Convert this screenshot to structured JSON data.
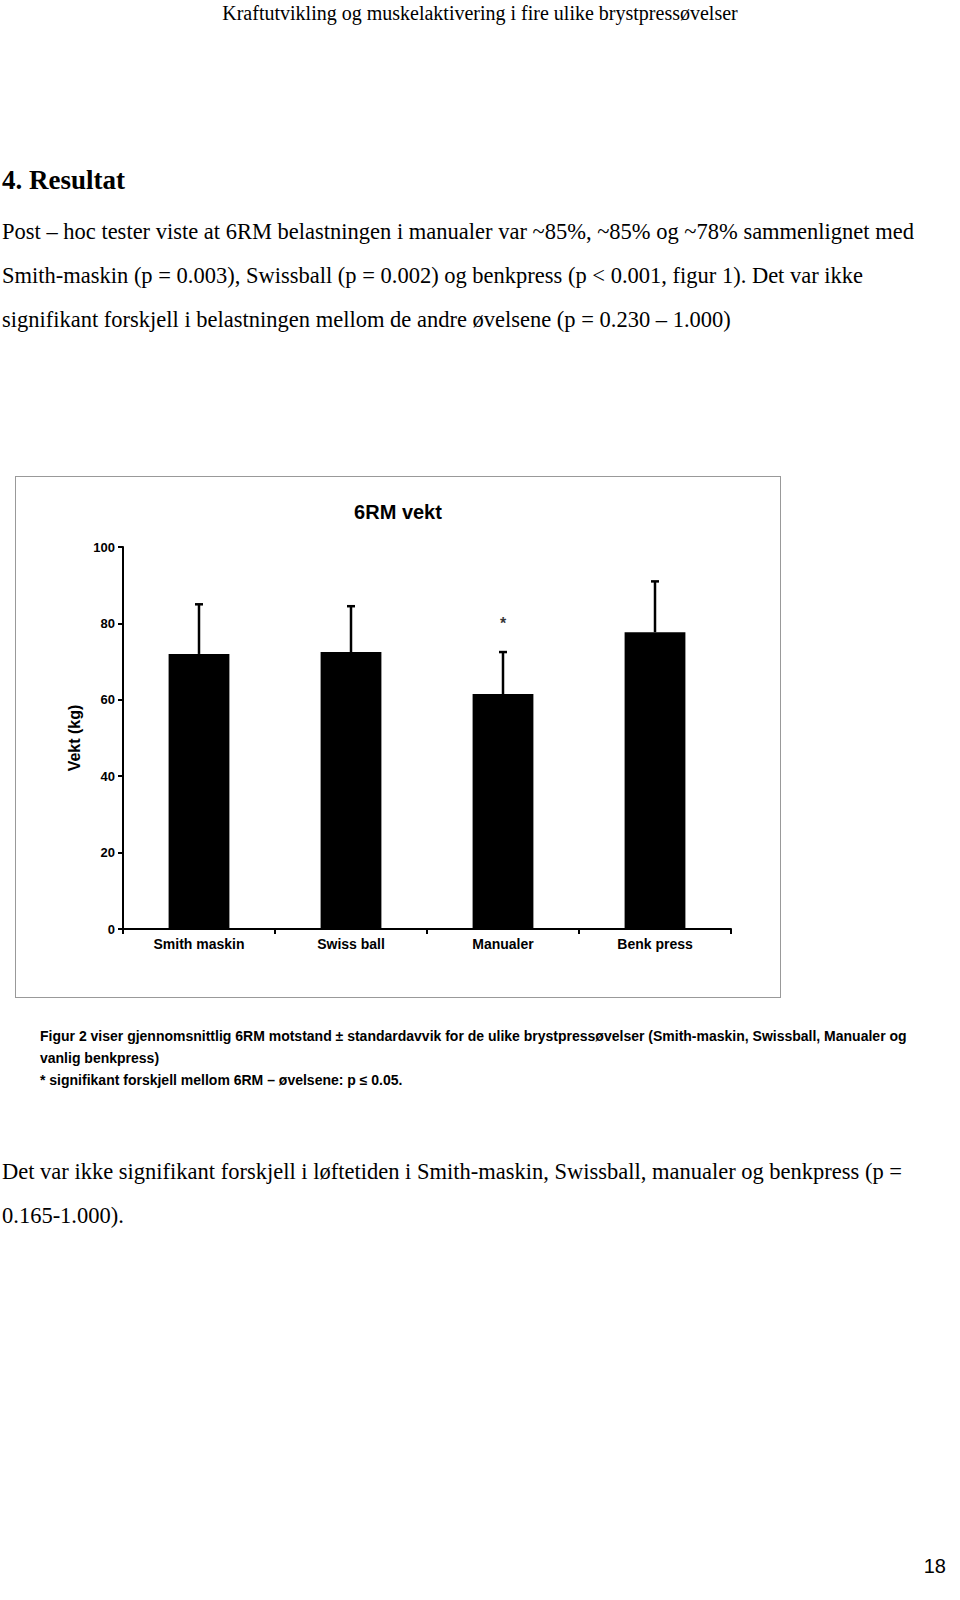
{
  "header": "Kraftutvikling og muskelaktivering i fire ulike brystpressøvelser",
  "heading": "4. Resultat",
  "text_before": "Post – hoc tester viste at 6RM belastningen i manualer var ~85%, ~85% og ~78% sammenlignet med Smith-maskin (p = 0.003), Swissball (p = 0.002) og benkpress (p < 0.001, figur 1). Det var ikke signifikant forskjell i belastningen mellom de andre øvelsene (p = 0.230 – 1.000)",
  "chart_data": {
    "type": "bar",
    "title": "6RM vekt",
    "y_label": "Vekt (kg)",
    "categories": [
      "Smith maskin",
      "Swiss ball",
      "Manualer",
      "Benk press"
    ],
    "values": [
      72,
      72.5,
      61.5,
      77.7
    ],
    "errors": [
      13,
      12,
      11,
      13.3
    ],
    "color": "#000000",
    "ylim": [
      0,
      100
    ],
    "yticks": [
      0,
      20,
      40,
      60,
      80,
      100
    ],
    "grid": false,
    "annotations": [
      {
        "text": "*",
        "x": "Manualer",
        "y": 80
      }
    ]
  },
  "caption": [
    "Figur 2 viser gjennomsnittlig 6RM motstand ± standardavvik for de ulike brystpressøvelser (Smith-maskin, Swissball, Manualer og vanlig benkpress)",
    "* signifikant forskjell mellom 6RM – øvelsene: p ≤ 0.05."
  ],
  "text_after": "Det var ikke signifikant forskjell i løftetiden i Smith-maskin, Swissball, manualer og benkpress (p = 0.165-1.000).",
  "page_number": "18"
}
